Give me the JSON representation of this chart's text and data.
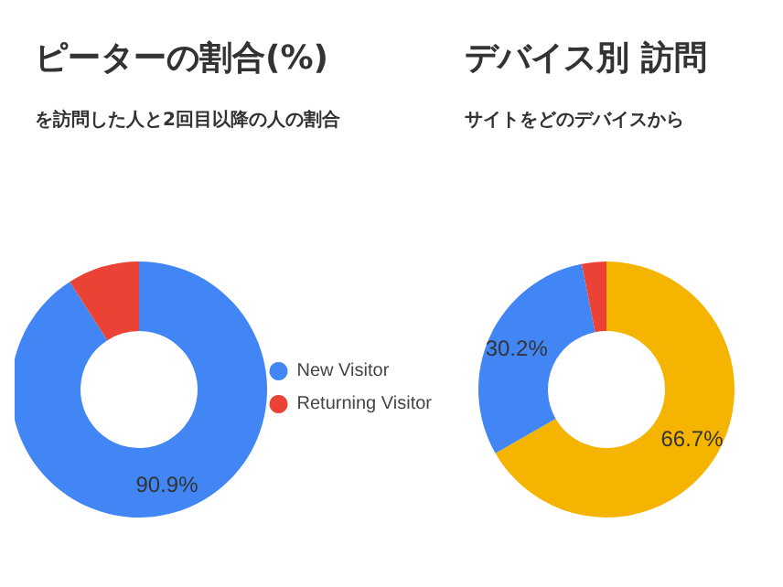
{
  "chart_data": [
    {
      "type": "donut",
      "title": "ピーターの割合(%)",
      "subtitle": "を訪問した人と2回目以降の人の割合",
      "categories": [
        "New Visitor",
        "Returning Visitor"
      ],
      "values": [
        90.9,
        9.1
      ],
      "colors": [
        "#4285f4",
        "#ea4335"
      ],
      "value_labels": [
        "90.9%",
        null
      ],
      "legend": "right"
    },
    {
      "type": "donut",
      "title": "デバイス別 訪問",
      "subtitle": "サイトをどのデバイスから",
      "categories": [
        null,
        null,
        null
      ],
      "values": [
        66.7,
        30.2,
        3.1
      ],
      "colors": [
        "#f4b400",
        "#4285f4",
        "#ea4335"
      ],
      "value_labels": [
        "66.7%",
        "30.2%",
        null
      ]
    }
  ]
}
